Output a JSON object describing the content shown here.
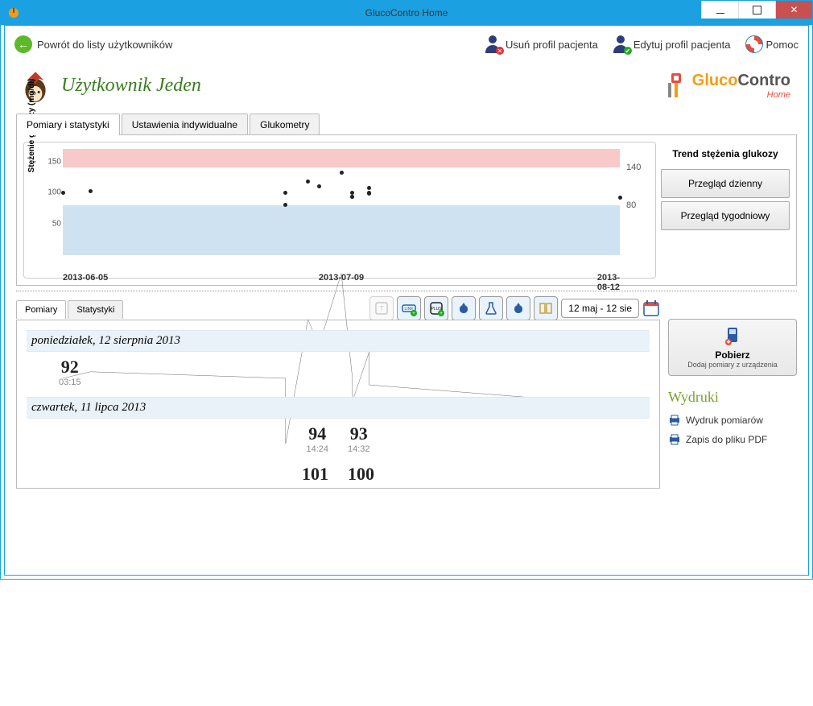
{
  "window": {
    "title": "GlucoContro Home"
  },
  "toolbar": {
    "back": "Powrót do listy użytkowników",
    "delete_profile": "Usuń profil pacjenta",
    "edit_profile": "Edytuj profil pacjenta",
    "help": "Pomoc"
  },
  "user": {
    "name": "Użytkownik Jeden"
  },
  "brand": {
    "name1": "Gluco",
    "name2": "Contro",
    "sub": "Home"
  },
  "tabs": {
    "measurements": "Pomiary i statystyki",
    "settings": "Ustawienia indywidualne",
    "glucometers": "Glukometry",
    "active": "measurements"
  },
  "chart": {
    "title": "Trend stężenia glukozy",
    "ylabel": "Stężenie glukozy (mg/dl)",
    "y_left_ticks": [
      50,
      100,
      150
    ],
    "y_right_ticks": [
      80,
      140
    ],
    "x_ticks": [
      "2013-06-05",
      "2013-07-09",
      "2013-08-12"
    ],
    "ylim": [
      0,
      170
    ],
    "bands": {
      "pink": {
        "from": 140,
        "to": 170,
        "color": "#f7c9c9"
      },
      "white": {
        "from": 80,
        "to": 140,
        "color": "#ffffff"
      },
      "blue": {
        "from": 0,
        "to": 80,
        "color": "#cfe2f2"
      }
    },
    "line_color": "#444444",
    "dot_color": "#222222",
    "points": [
      {
        "x": 0.0,
        "y": 100
      },
      {
        "x": 0.05,
        "y": 102
      },
      {
        "x": 0.4,
        "y": 100
      },
      {
        "x": 0.4,
        "y": 80
      },
      {
        "x": 0.44,
        "y": 118
      },
      {
        "x": 0.46,
        "y": 110
      },
      {
        "x": 0.5,
        "y": 132
      },
      {
        "x": 0.52,
        "y": 100
      },
      {
        "x": 0.52,
        "y": 94
      },
      {
        "x": 0.52,
        "y": 93
      },
      {
        "x": 0.55,
        "y": 108
      },
      {
        "x": 0.55,
        "y": 100
      },
      {
        "x": 0.55,
        "y": 98
      },
      {
        "x": 1.0,
        "y": 92
      }
    ],
    "buttons": {
      "daily": "Przegląd dzienny",
      "weekly": "Przegląd tygodniowy"
    }
  },
  "subtabs": {
    "measurements": "Pomiary",
    "stats": "Statystyki",
    "active": "measurements"
  },
  "date_range": "12 maj - 12 sie",
  "days": [
    {
      "header": "poniedziałek, 12 sierpnia 2013",
      "rows": [
        [
          {
            "val": "92",
            "time": "03:15"
          }
        ]
      ]
    },
    {
      "header": "czwartek, 11 lipca 2013",
      "rows": [
        [
          {
            "val": "94",
            "time": "14:24"
          },
          {
            "val": "93",
            "time": "14:32"
          }
        ],
        [
          {
            "val": "101",
            "time": ""
          },
          {
            "val": "100",
            "time": ""
          }
        ]
      ]
    }
  ],
  "download": {
    "title": "Pobierz",
    "sub": "Dodaj pomiary z urządzenia"
  },
  "prints": {
    "title": "Wydruki",
    "items": [
      "Wydruk pomiarów",
      "Zapis do pliku PDF"
    ]
  },
  "colors": {
    "accent_blue": "#1ba1e2",
    "back_green": "#5db82a",
    "brand_orange": "#f39c12",
    "brand_red": "#e74c3c",
    "username_green": "#3a7d1f",
    "prints_green": "#7aa22b"
  }
}
